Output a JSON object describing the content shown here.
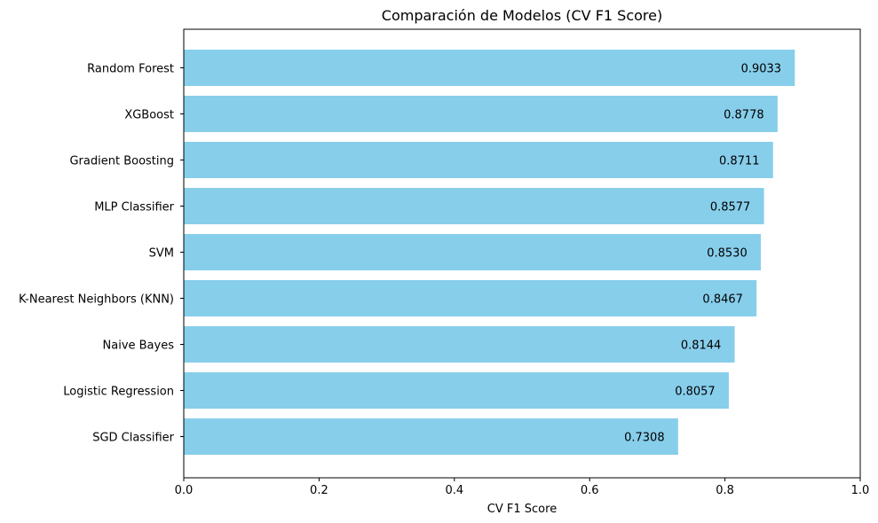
{
  "chart_data": {
    "type": "bar",
    "orientation": "horizontal",
    "title": "Comparación de Modelos (CV F1 Score)",
    "xlabel": "CV F1 Score",
    "ylabel": "",
    "xlim": [
      0,
      1.0
    ],
    "xticks": [
      "0.0",
      "0.2",
      "0.4",
      "0.6",
      "0.8",
      "1.0"
    ],
    "categories": [
      "Random Forest",
      "XGBoost",
      "Gradient Boosting",
      "MLP Classifier",
      "SVM",
      "K-Nearest Neighbors (KNN)",
      "Naive Bayes",
      "Logistic Regression",
      "SGD Classifier"
    ],
    "values": [
      0.9033,
      0.8778,
      0.8711,
      0.8577,
      0.853,
      0.8467,
      0.8144,
      0.8057,
      0.7308
    ],
    "value_labels": [
      "0.9033",
      "0.8778",
      "0.8711",
      "0.8577",
      "0.8530",
      "0.8467",
      "0.8144",
      "0.8057",
      "0.7308"
    ],
    "bar_color": "#87CEEB",
    "grid": false,
    "legend": "none"
  }
}
